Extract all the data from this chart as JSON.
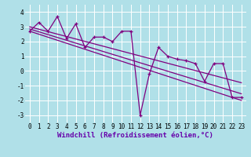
{
  "background_color": "#b0e0e8",
  "grid_color": "#ffffff",
  "line_color": "#800080",
  "xlabel": "Windchill (Refroidissement éolien,°C)",
  "xlabel_fontsize": 6.5,
  "tick_fontsize": 5.5,
  "ylim": [
    -3.5,
    4.5
  ],
  "xlim": [
    -0.5,
    23.5
  ],
  "yticks": [
    -3,
    -2,
    -1,
    0,
    1,
    2,
    3,
    4
  ],
  "xtick_labels": [
    "0",
    "1",
    "2",
    "3",
    "4",
    "5",
    "6",
    "7",
    "8",
    "9",
    "10",
    "11",
    "12",
    "13",
    "14",
    "15",
    "16",
    "17",
    "18",
    "19",
    "20",
    "21",
    "22",
    "23"
  ],
  "series1_x": [
    0,
    1,
    2,
    3,
    4,
    5,
    6,
    7,
    8,
    9,
    10,
    11,
    12,
    13,
    14,
    15,
    16,
    17,
    18,
    19,
    20,
    21,
    22,
    23
  ],
  "series1_y": [
    2.7,
    3.3,
    2.7,
    3.7,
    2.2,
    3.2,
    1.6,
    2.3,
    2.3,
    2.0,
    2.7,
    2.7,
    -3.0,
    -0.2,
    1.6,
    1.0,
    0.8,
    0.7,
    0.5,
    -0.7,
    0.5,
    0.5,
    -1.8,
    -1.8
  ],
  "series2_x": [
    0,
    23
  ],
  "series2_y": [
    2.7,
    -2.0
  ],
  "series3_x": [
    0,
    23
  ],
  "series3_y": [
    2.85,
    -1.55
  ],
  "series4_x": [
    0,
    23
  ],
  "series4_y": [
    3.0,
    -0.8
  ],
  "label_color": "#6600aa",
  "label_fontweight": "bold"
}
